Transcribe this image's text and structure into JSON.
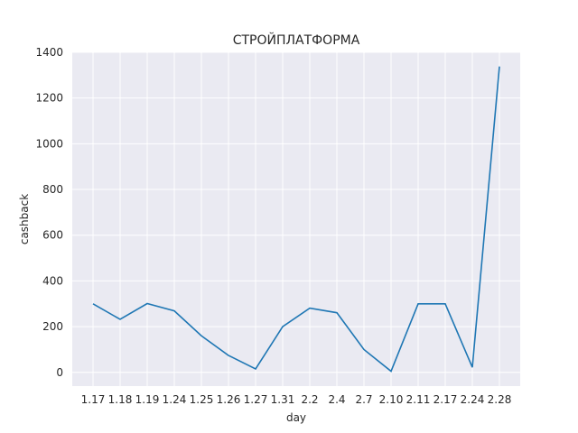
{
  "chart_data": {
    "type": "line",
    "title": "СТРОЙПЛАТФОРМА",
    "xlabel": "day",
    "ylabel": "cashback",
    "categories": [
      "1.17",
      "1.18",
      "1.19",
      "1.24",
      "1.25",
      "1.26",
      "1.27",
      "1.31",
      "2.2",
      "2.4",
      "2.7",
      "2.10",
      "2.11",
      "2.17",
      "2.24",
      "2.28"
    ],
    "series": [
      {
        "values": [
          300,
          232,
          301,
          269,
          160,
          74,
          15,
          200,
          281,
          261,
          100,
          5,
          300,
          300,
          22,
          1338
        ],
        "color": "#1f77b4"
      }
    ],
    "ylim": [
      -60,
      1400
    ],
    "yticks": [
      0,
      200,
      400,
      600,
      800,
      1000,
      1200,
      1400
    ],
    "grid": true,
    "background": "#eaeaf2"
  }
}
